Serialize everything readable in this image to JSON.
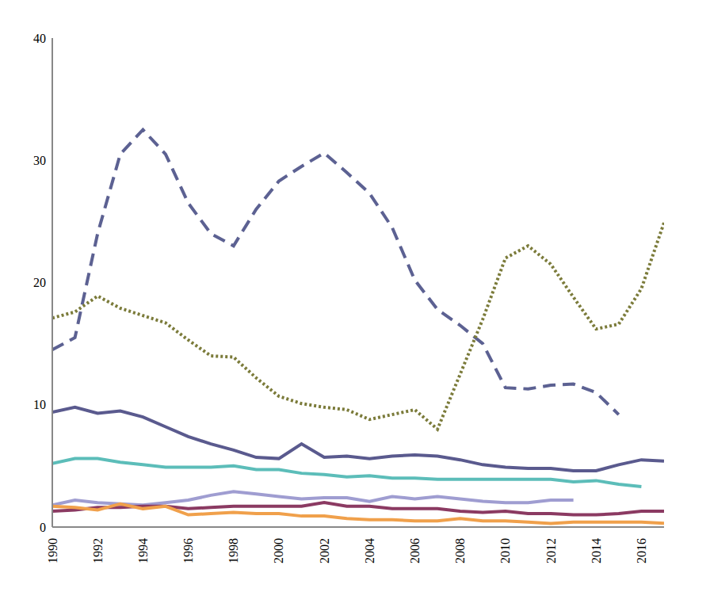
{
  "chart_data": {
    "type": "line",
    "x": [
      1990,
      1991,
      1992,
      1993,
      1994,
      1995,
      1996,
      1997,
      1998,
      1999,
      2000,
      2001,
      2002,
      2003,
      2004,
      2005,
      2006,
      2007,
      2008,
      2009,
      2010,
      2011,
      2012,
      2013,
      2014,
      2015,
      2016,
      2017
    ],
    "series": [
      {
        "color": "#5c6192",
        "line_style": "dashed",
        "values": [
          14.5,
          15.5,
          24,
          30.5,
          32.5,
          30.5,
          26.5,
          24,
          23,
          26,
          28.3,
          29.5,
          30.6,
          29,
          27.3,
          24.5,
          20.2,
          17.8,
          16.5,
          15,
          11.4,
          11.3,
          11.6,
          11.7,
          11.0,
          9.2,
          null,
          null
        ]
      },
      {
        "color": "#7b7b3a",
        "line_style": "dotted",
        "values": [
          17.1,
          17.6,
          18.9,
          17.9,
          17.3,
          16.7,
          15.3,
          14,
          13.9,
          12.2,
          10.7,
          10.1,
          9.8,
          9.6,
          8.8,
          9.2,
          9.6,
          8.0,
          12.5,
          17,
          22,
          23,
          21.5,
          18.8,
          16.2,
          16.6,
          19.5,
          24.9
        ]
      },
      {
        "color": "#5a5a8e",
        "line_style": "solid",
        "values": [
          9.4,
          9.8,
          9.3,
          9.5,
          9.0,
          8.2,
          7.4,
          6.8,
          6.3,
          5.7,
          5.6,
          6.8,
          5.7,
          5.8,
          5.6,
          5.8,
          5.9,
          5.8,
          5.5,
          5.1,
          4.9,
          4.8,
          4.8,
          4.6,
          4.6,
          5.1,
          5.5,
          5.4
        ]
      },
      {
        "color": "#5cbdb9",
        "line_style": "solid",
        "values": [
          5.2,
          5.6,
          5.6,
          5.3,
          5.1,
          4.9,
          4.9,
          4.9,
          5.0,
          4.7,
          4.7,
          4.4,
          4.3,
          4.1,
          4.2,
          4.0,
          4.0,
          3.9,
          3.9,
          3.9,
          3.9,
          3.9,
          3.9,
          3.7,
          3.8,
          3.5,
          3.3,
          null
        ]
      },
      {
        "color": "#9f9dd1",
        "line_style": "solid",
        "values": [
          1.8,
          2.2,
          2.0,
          1.9,
          1.8,
          2.0,
          2.2,
          2.6,
          2.9,
          2.7,
          2.5,
          2.3,
          2.4,
          2.4,
          2.1,
          2.5,
          2.3,
          2.5,
          2.3,
          2.1,
          2.0,
          2.0,
          2.2,
          2.2,
          null,
          null,
          null,
          null
        ]
      },
      {
        "color": "#8b3a62",
        "line_style": "solid",
        "values": [
          1.3,
          1.4,
          1.6,
          1.6,
          1.7,
          1.7,
          1.5,
          1.6,
          1.7,
          1.7,
          1.7,
          1.7,
          2.0,
          1.7,
          1.7,
          1.5,
          1.5,
          1.5,
          1.3,
          1.2,
          1.3,
          1.1,
          1.1,
          1.0,
          1.0,
          1.1,
          1.3,
          1.3
        ]
      },
      {
        "color": "#f0a04b",
        "line_style": "solid",
        "values": [
          1.7,
          1.6,
          1.4,
          1.9,
          1.5,
          1.7,
          1.0,
          1.1,
          1.2,
          1.1,
          1.1,
          0.9,
          0.9,
          0.7,
          0.6,
          0.6,
          0.5,
          0.5,
          0.7,
          0.5,
          0.5,
          0.4,
          0.3,
          0.4,
          0.4,
          0.4,
          0.4,
          0.3
        ]
      }
    ],
    "xlim": [
      1990,
      2017
    ],
    "xticks": [
      1990,
      1992,
      1994,
      1996,
      1998,
      2000,
      2002,
      2004,
      2006,
      2008,
      2010,
      2012,
      2014,
      2016
    ],
    "ylim": [
      0,
      40
    ],
    "yticks": [
      0,
      10,
      20,
      30,
      40
    ],
    "grid": false
  }
}
